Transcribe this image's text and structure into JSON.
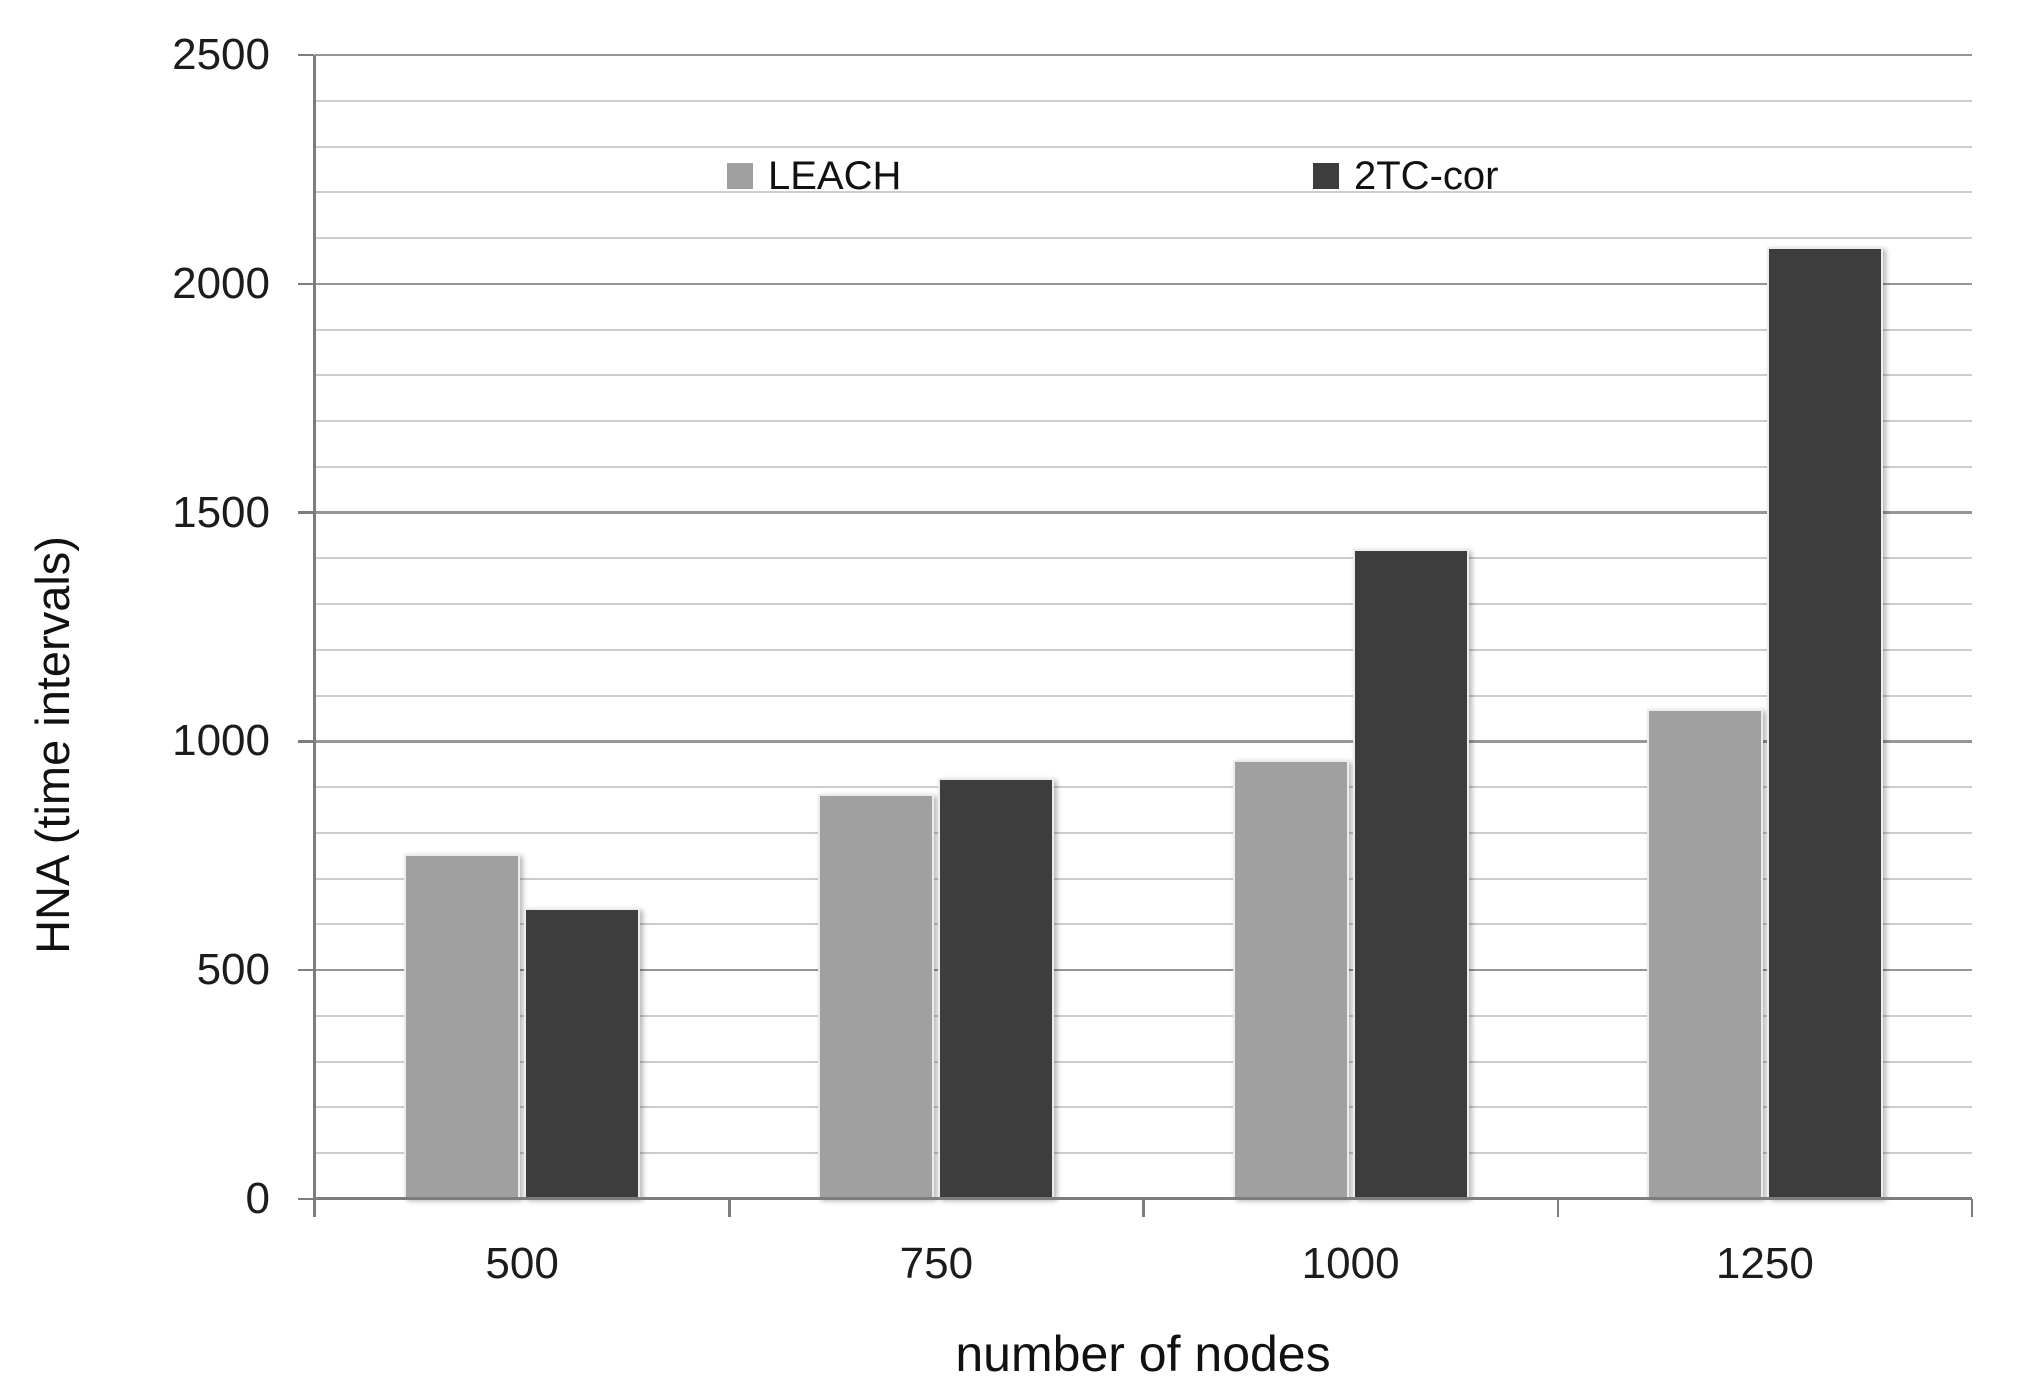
{
  "chart_data": {
    "type": "bar",
    "title": "",
    "categories": [
      "500",
      "750",
      "1000",
      "1250"
    ],
    "series": [
      {
        "name": "LEACH",
        "color": "#a0a0a0",
        "values": [
          755,
          885,
          960,
          1070
        ]
      },
      {
        "name": "2TC-cor",
        "color": "#3d3d3d",
        "values": [
          635,
          920,
          1420,
          2080
        ]
      }
    ],
    "xlabel": "number of nodes",
    "ylabel": "HNA (time intervals)",
    "ylim": [
      0,
      2500
    ],
    "y_major_step": 500,
    "y_minor_step": 100,
    "y_major_ticks": [
      0,
      500,
      1000,
      1500,
      2000,
      2500
    ],
    "grid": "horizontal-minor-and-major",
    "legend_position": "top-inside",
    "bar_orientation": "vertical"
  },
  "colors": {
    "background": "#ffffff",
    "minor_gridline": "#cdcdcd",
    "major_gridline": "#969696",
    "axis_line": "#7d7d7d",
    "text": "#1c1c1c",
    "series_leach": "#a0a0a0",
    "series_2tc_cor": "#3d3d3d"
  }
}
